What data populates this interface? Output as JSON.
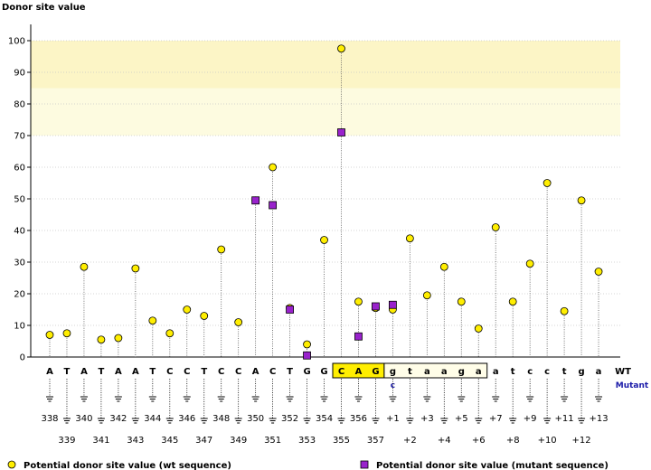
{
  "chart_data": {
    "type": "scatter",
    "ylabel": "Donor site value",
    "ylim": [
      0,
      100
    ],
    "yticks": [
      0,
      10,
      20,
      30,
      40,
      50,
      60,
      70,
      80,
      90,
      100
    ],
    "highlight_band": [
      80,
      100
    ],
    "highlight_band_color": "#fdfbe0",
    "highlight_band_color_strong": "#fcf5c6",
    "wt_label": "WT",
    "mutant_label": "Mutant",
    "positions": [
      "338",
      "339",
      "340",
      "341",
      "342",
      "343",
      "344",
      "345",
      "346",
      "347",
      "348",
      "349",
      "350",
      "351",
      "352",
      "353",
      "354",
      "355",
      "356",
      "357",
      "+1",
      "+2",
      "+3",
      "+4",
      "+5",
      "+6",
      "+7",
      "+8",
      "+9",
      "+10",
      "+11",
      "+12",
      "+13"
    ],
    "nucleotides": [
      "A",
      "T",
      "A",
      "T",
      "A",
      "A",
      "T",
      "C",
      "C",
      "T",
      "C",
      "C",
      "A",
      "C",
      "T",
      "G",
      "G",
      "C",
      "A",
      "G",
      "g",
      "t",
      "a",
      "a",
      "g",
      "a",
      "a",
      "t",
      "c",
      "c",
      "t",
      "g",
      "a"
    ],
    "mutant_bases": [
      "",
      "",
      "",
      "",
      "",
      "",
      "",
      "",
      "",
      "",
      "",
      "",
      "",
      "",
      "",
      "",
      "",
      "",
      "",
      "",
      "c",
      "",
      "",
      "",
      "",
      "",
      "",
      "",
      "",
      "",
      "",
      "",
      ""
    ],
    "boxed_exon_range": [
      17,
      19
    ],
    "boxed_intron_range": [
      20,
      25
    ],
    "series": [
      {
        "name": "Potential donor site value (wt sequence)",
        "marker": "circle",
        "color": "#ffee00",
        "values": [
          7,
          7.5,
          28.5,
          5.5,
          6,
          28,
          11.5,
          7.5,
          15,
          13,
          34,
          11,
          49.5,
          60,
          15.5,
          4,
          37,
          97.5,
          17.5,
          15.5,
          15,
          37.5,
          19.5,
          28.5,
          17.5,
          9,
          41,
          17.5,
          29.5,
          55,
          14.5,
          49.5,
          27
        ]
      },
      {
        "name": "Potential donor site value (mutant sequence)",
        "marker": "square",
        "color": "#9922cc",
        "values": [
          null,
          null,
          null,
          null,
          null,
          null,
          null,
          null,
          null,
          null,
          null,
          null,
          49.5,
          48,
          15,
          0.5,
          null,
          71,
          6.5,
          16,
          16.5,
          null,
          null,
          null,
          null,
          null,
          null,
          null,
          null,
          null,
          null,
          null,
          null
        ]
      }
    ]
  }
}
